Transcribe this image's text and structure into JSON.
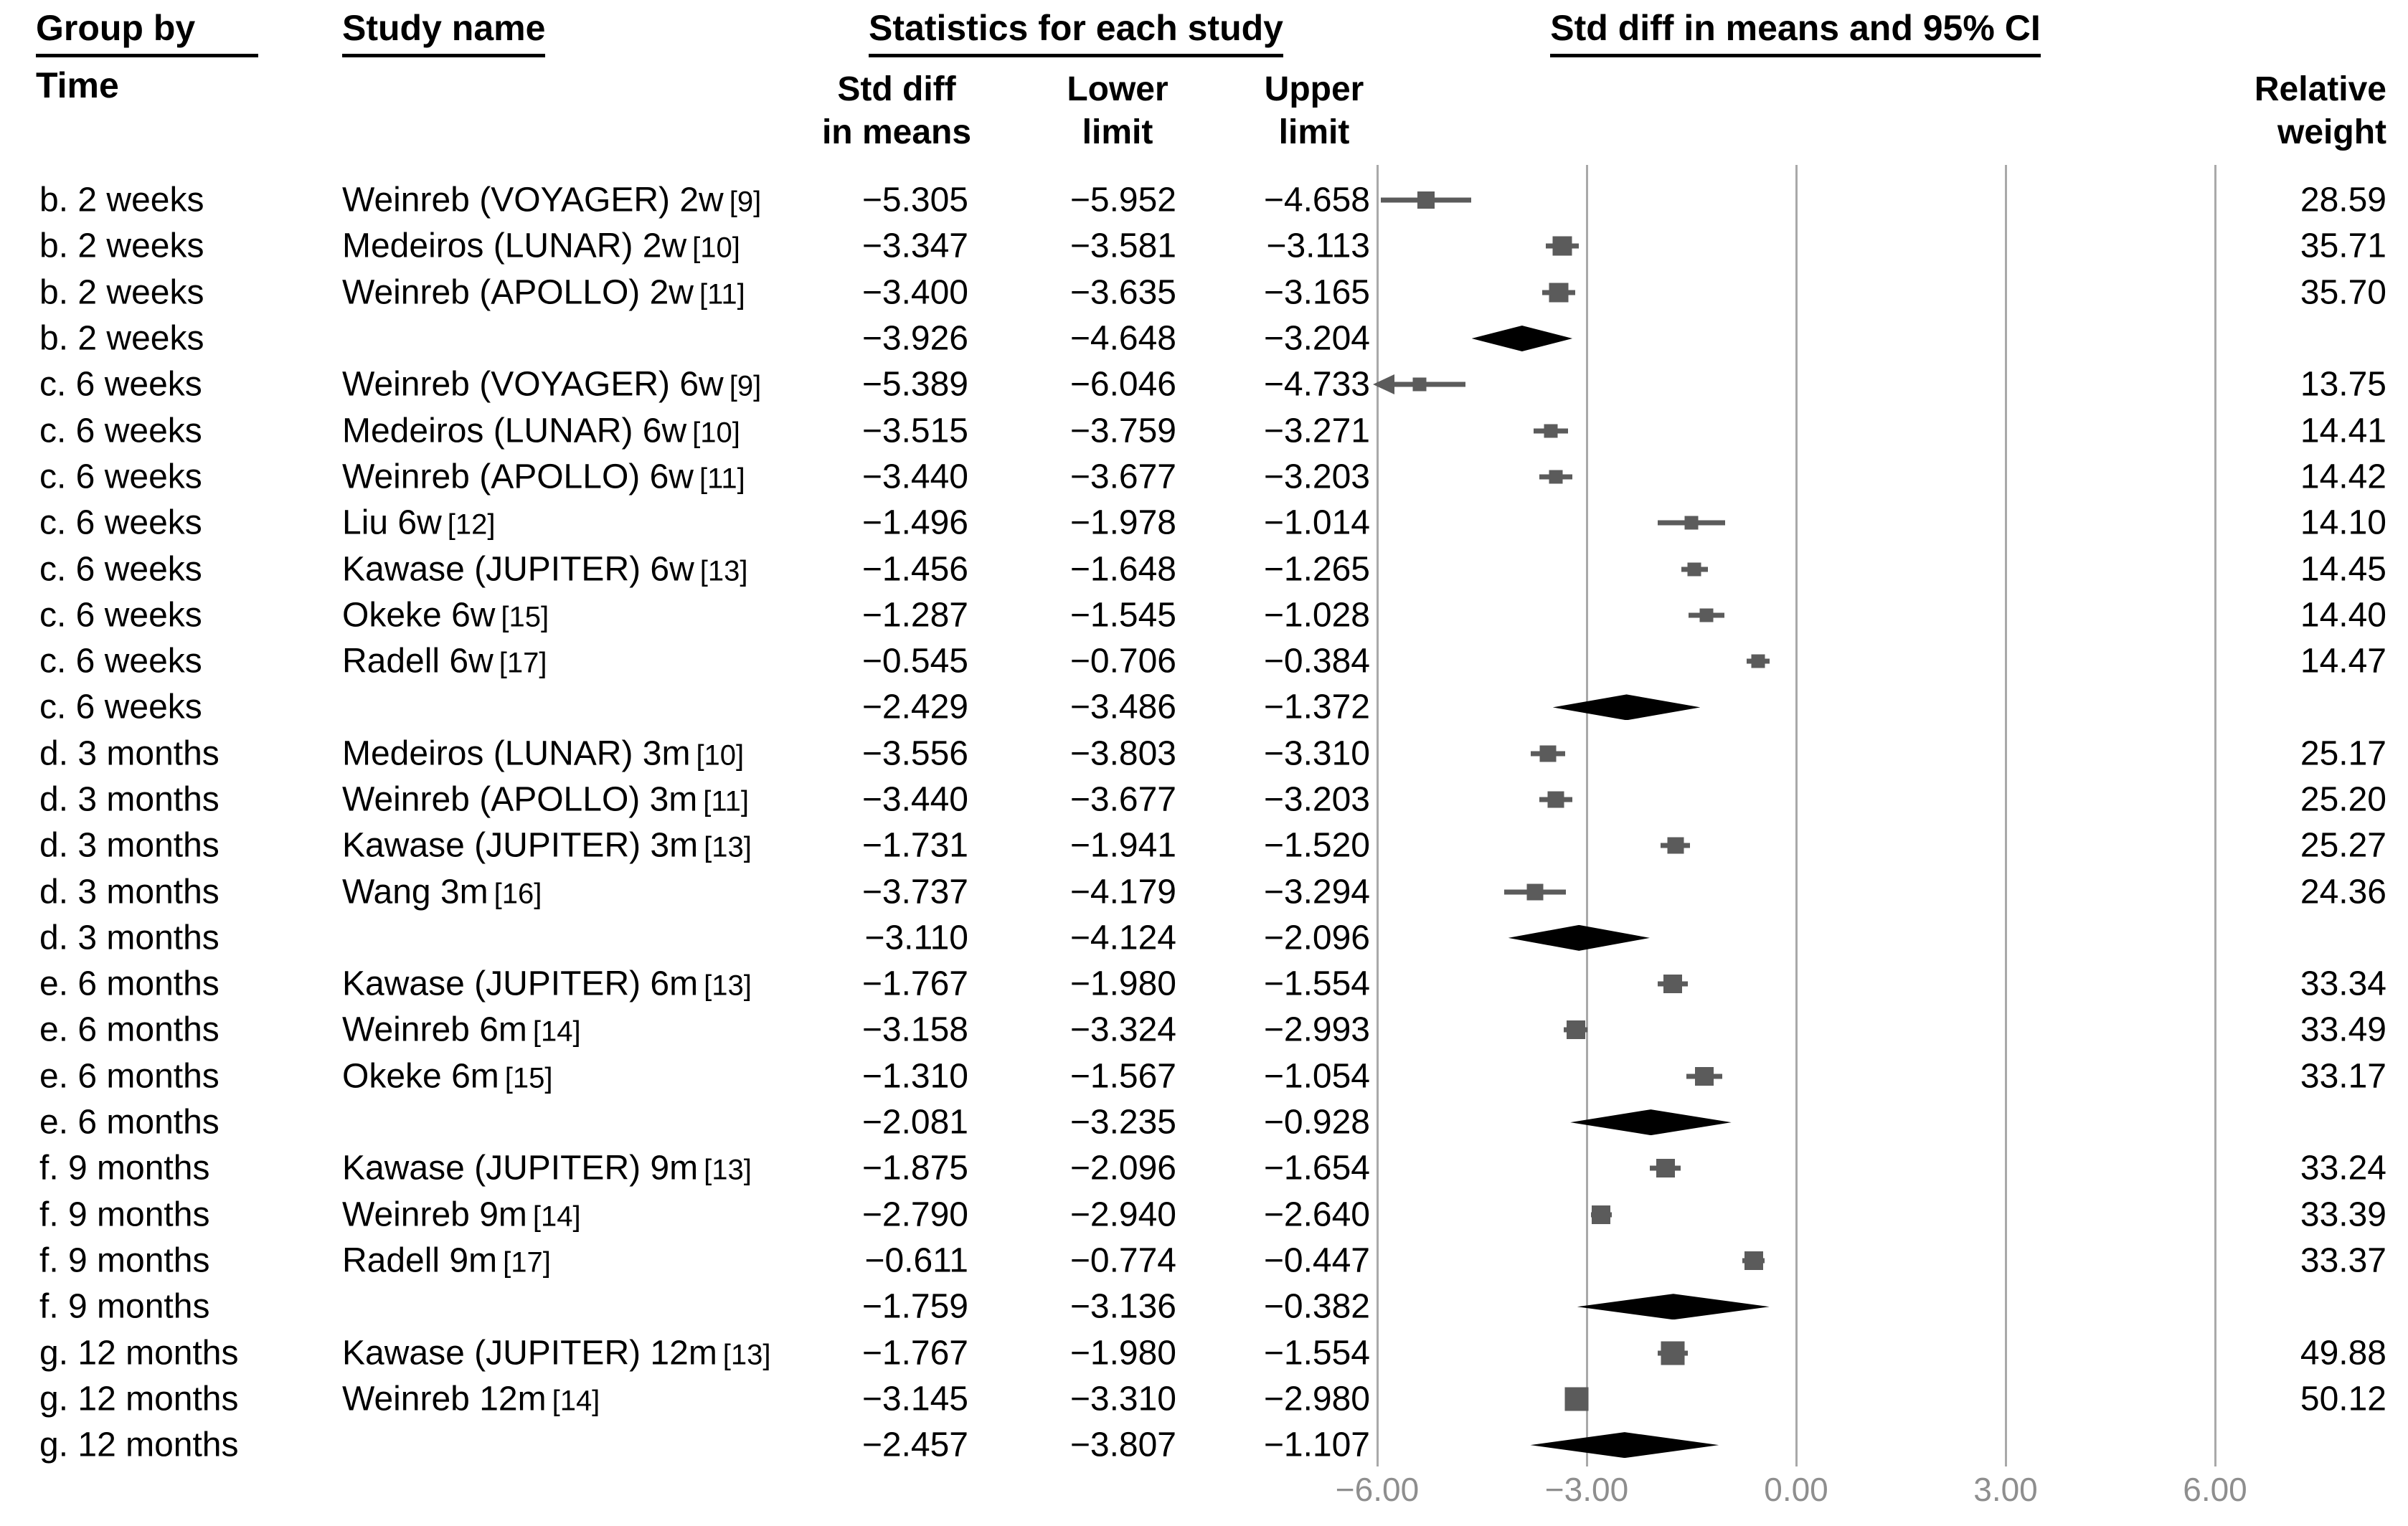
{
  "headers": {
    "group_by": "Group by",
    "group_by_sub": "Time",
    "study_name": "Study name",
    "stats_title": "Statistics for each study",
    "plot_title": "Std diff in means and 95% CI",
    "col_effect_line1": "Std diff",
    "col_effect_line2": "in means",
    "col_lower_line1": "Lower",
    "col_lower_line2": "limit",
    "col_upper_line1": "Upper",
    "col_upper_line2": "limit",
    "col_weight_line1": "Relative",
    "col_weight_line2": "weight"
  },
  "colors": {
    "text": "#000000",
    "marker": "#5b5b5b",
    "ci_line": "#5b5b5b",
    "diamond": "#000000",
    "gridline": "#a9a9a9",
    "tick_label": "#8e8e8e"
  },
  "chart_data": {
    "type": "forest",
    "title": "Std diff in means and 95% CI",
    "effect_measure": "Std diff in means",
    "grouping_label": "Group by Time",
    "axis": {
      "xlim": [
        -6,
        6
      ],
      "ticks": [
        -6,
        -3,
        0,
        3,
        6
      ],
      "tick_labels": [
        "−6.00",
        "−3.00",
        "0.00",
        "3.00",
        "6.00"
      ],
      "grid": true
    },
    "rows": [
      {
        "group": "b. 2 weeks",
        "name": "Weinreb (VOYAGER) 2w",
        "ref": "[9]",
        "std_diff": "-5.305",
        "lower": "-5.952",
        "upper": "-4.658",
        "weight": "28.59",
        "kind": "study"
      },
      {
        "group": "b. 2 weeks",
        "name": "Medeiros (LUNAR) 2w",
        "ref": "[10]",
        "std_diff": "-3.347",
        "lower": "-3.581",
        "upper": "-3.113",
        "weight": "35.71",
        "kind": "study"
      },
      {
        "group": "b. 2 weeks",
        "name": "Weinreb (APOLLO) 2w",
        "ref": "[11]",
        "std_diff": "-3.400",
        "lower": "-3.635",
        "upper": "-3.165",
        "weight": "35.70",
        "kind": "study"
      },
      {
        "group": "b. 2 weeks",
        "name": "",
        "ref": "",
        "std_diff": "-3.926",
        "lower": "-4.648",
        "upper": "-3.204",
        "weight": "",
        "kind": "summary"
      },
      {
        "group": "c. 6 weeks",
        "name": "Weinreb (VOYAGER) 6w",
        "ref": "[9]",
        "std_diff": "-5.389",
        "lower": "-6.046",
        "upper": "-4.733",
        "weight": "13.75",
        "kind": "study"
      },
      {
        "group": "c. 6 weeks",
        "name": "Medeiros (LUNAR) 6w",
        "ref": "[10]",
        "std_diff": "-3.515",
        "lower": "-3.759",
        "upper": "-3.271",
        "weight": "14.41",
        "kind": "study"
      },
      {
        "group": "c. 6 weeks",
        "name": "Weinreb (APOLLO) 6w",
        "ref": "[11]",
        "std_diff": "-3.440",
        "lower": "-3.677",
        "upper": "-3.203",
        "weight": "14.42",
        "kind": "study"
      },
      {
        "group": "c. 6 weeks",
        "name": "Liu 6w",
        "ref": "[12]",
        "std_diff": "-1.496",
        "lower": "-1.978",
        "upper": "-1.014",
        "weight": "14.10",
        "kind": "study"
      },
      {
        "group": "c. 6 weeks",
        "name": "Kawase  (JUPITER) 6w",
        "ref": "[13]",
        "std_diff": "-1.456",
        "lower": "-1.648",
        "upper": "-1.265",
        "weight": "14.45",
        "kind": "study"
      },
      {
        "group": "c. 6 weeks",
        "name": "Okeke 6w",
        "ref": "[15]",
        "std_diff": "-1.287",
        "lower": "-1.545",
        "upper": "-1.028",
        "weight": "14.40",
        "kind": "study"
      },
      {
        "group": "c. 6 weeks",
        "name": "Radell 6w",
        "ref": "[17]",
        "std_diff": "-0.545",
        "lower": "-0.706",
        "upper": "-0.384",
        "weight": "14.47",
        "kind": "study"
      },
      {
        "group": "c. 6 weeks",
        "name": "",
        "ref": "",
        "std_diff": "-2.429",
        "lower": "-3.486",
        "upper": "-1.372",
        "weight": "",
        "kind": "summary"
      },
      {
        "group": "d. 3 months",
        "name": "Medeiros (LUNAR) 3m",
        "ref": "[10]",
        "std_diff": "-3.556",
        "lower": "-3.803",
        "upper": "-3.310",
        "weight": "25.17",
        "kind": "study"
      },
      {
        "group": "d. 3 months",
        "name": "Weinreb (APOLLO) 3m",
        "ref": "[11]",
        "std_diff": "-3.440",
        "lower": "-3.677",
        "upper": "-3.203",
        "weight": "25.20",
        "kind": "study"
      },
      {
        "group": "d. 3 months",
        "name": "Kawase  (JUPITER) 3m",
        "ref": "[13]",
        "std_diff": "-1.731",
        "lower": "-1.941",
        "upper": "-1.520",
        "weight": "25.27",
        "kind": "study"
      },
      {
        "group": "d. 3 months",
        "name": "Wang 3m",
        "ref": "[16]",
        "std_diff": "-3.737",
        "lower": "-4.179",
        "upper": "-3.294",
        "weight": "24.36",
        "kind": "study"
      },
      {
        "group": "d. 3 months",
        "name": "",
        "ref": "",
        "std_diff": "-3.110",
        "lower": "-4.124",
        "upper": "-2.096",
        "weight": "",
        "kind": "summary"
      },
      {
        "group": "e. 6 months",
        "name": "Kawase  (JUPITER) 6m",
        "ref": "[13]",
        "std_diff": "-1.767",
        "lower": "-1.980",
        "upper": "-1.554",
        "weight": "33.34",
        "kind": "study"
      },
      {
        "group": "e. 6 months",
        "name": "Weinreb 6m",
        "ref": "[14]",
        "std_diff": "-3.158",
        "lower": "-3.324",
        "upper": "-2.993",
        "weight": "33.49",
        "kind": "study"
      },
      {
        "group": "e. 6 months",
        "name": "Okeke 6m",
        "ref": "[15]",
        "std_diff": "-1.310",
        "lower": "-1.567",
        "upper": "-1.054",
        "weight": "33.17",
        "kind": "study"
      },
      {
        "group": "e. 6 months",
        "name": "",
        "ref": "",
        "std_diff": "-2.081",
        "lower": "-3.235",
        "upper": "-0.928",
        "weight": "",
        "kind": "summary"
      },
      {
        "group": "f. 9 months",
        "name": "Kawase  (JUPITER) 9m",
        "ref": "[13]",
        "std_diff": "-1.875",
        "lower": "-2.096",
        "upper": "-1.654",
        "weight": "33.24",
        "kind": "study"
      },
      {
        "group": "f. 9 months",
        "name": "Weinreb 9m",
        "ref": "[14]",
        "std_diff": "-2.790",
        "lower": "-2.940",
        "upper": "-2.640",
        "weight": "33.39",
        "kind": "study"
      },
      {
        "group": "f. 9 months",
        "name": "Radell 9m",
        "ref": "[17]",
        "std_diff": "-0.611",
        "lower": "-0.774",
        "upper": "-0.447",
        "weight": "33.37",
        "kind": "study"
      },
      {
        "group": "f. 9 months",
        "name": "",
        "ref": "",
        "std_diff": "-1.759",
        "lower": "-3.136",
        "upper": "-0.382",
        "weight": "",
        "kind": "summary"
      },
      {
        "group": "g. 12 months",
        "name": "Kawase  (JUPITER) 12m",
        "ref": "[13]",
        "std_diff": "-1.767",
        "lower": "-1.980",
        "upper": "-1.554",
        "weight": "49.88",
        "kind": "study"
      },
      {
        "group": "g. 12 months",
        "name": "Weinreb 12m",
        "ref": "[14]",
        "std_diff": "-3.145",
        "lower": "-3.310",
        "upper": "-2.980",
        "weight": "50.12",
        "kind": "study"
      },
      {
        "group": "g. 12 months",
        "name": "",
        "ref": "",
        "std_diff": "-2.457",
        "lower": "-3.807",
        "upper": "-1.107",
        "weight": "",
        "kind": "summary"
      }
    ]
  }
}
